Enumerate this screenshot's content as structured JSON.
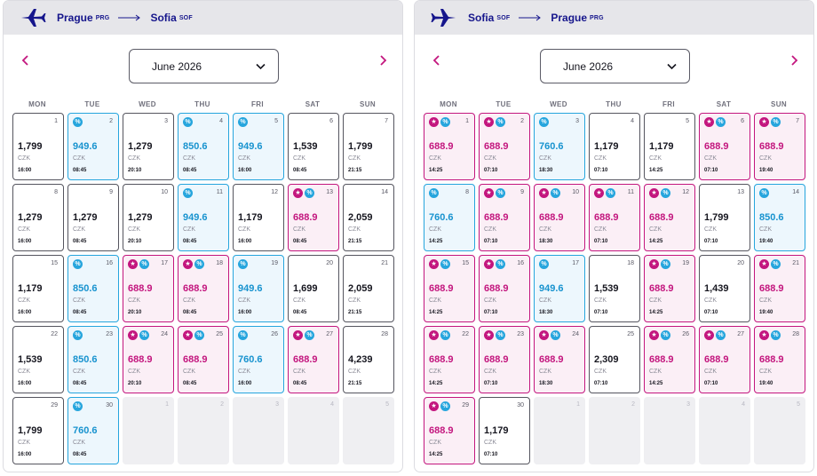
{
  "panels": [
    {
      "from_city": "Prague",
      "from_code": "PRG",
      "to_city": "Sofia",
      "to_code": "SOF",
      "month_label": "June 2026",
      "weekdays": [
        "MON",
        "TUE",
        "WED",
        "THU",
        "FRI",
        "SAT",
        "SUN"
      ],
      "days": [
        {
          "day": "1",
          "price": "1,799",
          "currency": "CZK",
          "time": "16:00",
          "style": "plain"
        },
        {
          "day": "2",
          "price": "949.6",
          "currency": "CZK",
          "time": "08:45",
          "style": "blue",
          "badges": [
            "disc"
          ]
        },
        {
          "day": "3",
          "price": "1,279",
          "currency": "CZK",
          "time": "20:10",
          "style": "plain"
        },
        {
          "day": "4",
          "price": "850.6",
          "currency": "CZK",
          "time": "08:45",
          "style": "blue",
          "badges": [
            "disc"
          ]
        },
        {
          "day": "5",
          "price": "949.6",
          "currency": "CZK",
          "time": "16:00",
          "style": "blue",
          "badges": [
            "disc"
          ]
        },
        {
          "day": "6",
          "price": "1,539",
          "currency": "CZK",
          "time": "08:45",
          "style": "plain"
        },
        {
          "day": "7",
          "price": "1,799",
          "currency": "CZK",
          "time": "21:15",
          "style": "plain"
        },
        {
          "day": "8",
          "price": "1,279",
          "currency": "CZK",
          "time": "16:00",
          "style": "plain"
        },
        {
          "day": "9",
          "price": "1,279",
          "currency": "CZK",
          "time": "08:45",
          "style": "plain"
        },
        {
          "day": "10",
          "price": "1,279",
          "currency": "CZK",
          "time": "20:10",
          "style": "plain"
        },
        {
          "day": "11",
          "price": "949.6",
          "currency": "CZK",
          "time": "08:45",
          "style": "blue",
          "badges": [
            "disc"
          ]
        },
        {
          "day": "12",
          "price": "1,179",
          "currency": "CZK",
          "time": "16:00",
          "style": "plain"
        },
        {
          "day": "13",
          "price": "688.9",
          "currency": "CZK",
          "time": "08:45",
          "style": "pink",
          "badges": [
            "star",
            "disc"
          ]
        },
        {
          "day": "14",
          "price": "2,059",
          "currency": "CZK",
          "time": "21:15",
          "style": "plain"
        },
        {
          "day": "15",
          "price": "1,179",
          "currency": "CZK",
          "time": "16:00",
          "style": "plain"
        },
        {
          "day": "16",
          "price": "850.6",
          "currency": "CZK",
          "time": "08:45",
          "style": "blue",
          "badges": [
            "disc"
          ]
        },
        {
          "day": "17",
          "price": "688.9",
          "currency": "CZK",
          "time": "20:10",
          "style": "pink",
          "badges": [
            "star",
            "disc"
          ]
        },
        {
          "day": "18",
          "price": "688.9",
          "currency": "CZK",
          "time": "08:45",
          "style": "pink",
          "badges": [
            "star",
            "disc"
          ]
        },
        {
          "day": "19",
          "price": "949.6",
          "currency": "CZK",
          "time": "16:00",
          "style": "blue",
          "badges": [
            "disc"
          ]
        },
        {
          "day": "20",
          "price": "1,699",
          "currency": "CZK",
          "time": "08:45",
          "style": "plain"
        },
        {
          "day": "21",
          "price": "2,059",
          "currency": "CZK",
          "time": "21:15",
          "style": "plain"
        },
        {
          "day": "22",
          "price": "1,539",
          "currency": "CZK",
          "time": "16:00",
          "style": "plain"
        },
        {
          "day": "23",
          "price": "850.6",
          "currency": "CZK",
          "time": "08:45",
          "style": "blue",
          "badges": [
            "disc"
          ]
        },
        {
          "day": "24",
          "price": "688.9",
          "currency": "CZK",
          "time": "20:10",
          "style": "pink",
          "badges": [
            "star",
            "disc"
          ]
        },
        {
          "day": "25",
          "price": "688.9",
          "currency": "CZK",
          "time": "08:45",
          "style": "pink",
          "badges": [
            "star",
            "disc"
          ]
        },
        {
          "day": "26",
          "price": "760.6",
          "currency": "CZK",
          "time": "16:00",
          "style": "blue",
          "badges": [
            "disc"
          ]
        },
        {
          "day": "27",
          "price": "688.9",
          "currency": "CZK",
          "time": "08:45",
          "style": "pink",
          "badges": [
            "star",
            "disc"
          ]
        },
        {
          "day": "28",
          "price": "4,239",
          "currency": "CZK",
          "time": "21:15",
          "style": "plain"
        },
        {
          "day": "29",
          "price": "1,799",
          "currency": "CZK",
          "time": "16:00",
          "style": "plain"
        },
        {
          "day": "30",
          "price": "760.6",
          "currency": "CZK",
          "time": "08:45",
          "style": "blue",
          "badges": [
            "disc"
          ]
        },
        {
          "day": "1",
          "style": "empty"
        },
        {
          "day": "2",
          "style": "empty"
        },
        {
          "day": "3",
          "style": "empty"
        },
        {
          "day": "4",
          "style": "empty"
        },
        {
          "day": "5",
          "style": "empty"
        }
      ]
    },
    {
      "from_city": "Sofia",
      "from_code": "SOF",
      "to_city": "Prague",
      "to_code": "PRG",
      "month_label": "June 2026",
      "weekdays": [
        "MON",
        "TUE",
        "WED",
        "THU",
        "FRI",
        "SAT",
        "SUN"
      ],
      "days": [
        {
          "day": "1",
          "price": "688.9",
          "currency": "CZK",
          "time": "14:25",
          "style": "pink",
          "badges": [
            "star",
            "disc"
          ]
        },
        {
          "day": "2",
          "price": "688.9",
          "currency": "CZK",
          "time": "07:10",
          "style": "pink",
          "badges": [
            "star",
            "disc"
          ]
        },
        {
          "day": "3",
          "price": "760.6",
          "currency": "CZK",
          "time": "18:30",
          "style": "blue",
          "badges": [
            "disc"
          ]
        },
        {
          "day": "4",
          "price": "1,179",
          "currency": "CZK",
          "time": "07:10",
          "style": "plain"
        },
        {
          "day": "5",
          "price": "1,179",
          "currency": "CZK",
          "time": "14:25",
          "style": "plain"
        },
        {
          "day": "6",
          "price": "688.9",
          "currency": "CZK",
          "time": "07:10",
          "style": "pink",
          "badges": [
            "star",
            "disc"
          ]
        },
        {
          "day": "7",
          "price": "688.9",
          "currency": "CZK",
          "time": "19:40",
          "style": "pink",
          "badges": [
            "star",
            "disc"
          ]
        },
        {
          "day": "8",
          "price": "760.6",
          "currency": "CZK",
          "time": "14:25",
          "style": "blue",
          "badges": [
            "disc"
          ]
        },
        {
          "day": "9",
          "price": "688.9",
          "currency": "CZK",
          "time": "07:10",
          "style": "pink",
          "badges": [
            "star",
            "disc"
          ]
        },
        {
          "day": "10",
          "price": "688.9",
          "currency": "CZK",
          "time": "18:30",
          "style": "pink",
          "badges": [
            "star",
            "disc"
          ]
        },
        {
          "day": "11",
          "price": "688.9",
          "currency": "CZK",
          "time": "07:10",
          "style": "pink",
          "badges": [
            "star",
            "disc"
          ]
        },
        {
          "day": "12",
          "price": "688.9",
          "currency": "CZK",
          "time": "14:25",
          "style": "pink",
          "badges": [
            "star",
            "disc"
          ]
        },
        {
          "day": "13",
          "price": "1,799",
          "currency": "CZK",
          "time": "07:10",
          "style": "plain"
        },
        {
          "day": "14",
          "price": "850.6",
          "currency": "CZK",
          "time": "19:40",
          "style": "blue",
          "badges": [
            "disc"
          ]
        },
        {
          "day": "15",
          "price": "688.9",
          "currency": "CZK",
          "time": "14:25",
          "style": "pink",
          "badges": [
            "star",
            "disc"
          ]
        },
        {
          "day": "16",
          "price": "688.9",
          "currency": "CZK",
          "time": "07:10",
          "style": "pink",
          "badges": [
            "star",
            "disc"
          ]
        },
        {
          "day": "17",
          "price": "949.6",
          "currency": "CZK",
          "time": "18:30",
          "style": "blue",
          "badges": [
            "disc"
          ]
        },
        {
          "day": "18",
          "price": "1,539",
          "currency": "CZK",
          "time": "07:10",
          "style": "plain"
        },
        {
          "day": "19",
          "price": "688.9",
          "currency": "CZK",
          "time": "14:25",
          "style": "pink",
          "badges": [
            "star",
            "disc"
          ]
        },
        {
          "day": "20",
          "price": "1,439",
          "currency": "CZK",
          "time": "07:10",
          "style": "plain"
        },
        {
          "day": "21",
          "price": "688.9",
          "currency": "CZK",
          "time": "19:40",
          "style": "pink",
          "badges": [
            "star",
            "disc"
          ]
        },
        {
          "day": "22",
          "price": "688.9",
          "currency": "CZK",
          "time": "14:25",
          "style": "pink",
          "badges": [
            "star",
            "disc"
          ]
        },
        {
          "day": "23",
          "price": "688.9",
          "currency": "CZK",
          "time": "07:10",
          "style": "pink",
          "badges": [
            "star",
            "disc"
          ]
        },
        {
          "day": "24",
          "price": "688.9",
          "currency": "CZK",
          "time": "18:30",
          "style": "pink",
          "badges": [
            "star",
            "disc"
          ]
        },
        {
          "day": "25",
          "price": "2,309",
          "currency": "CZK",
          "time": "07:10",
          "style": "plain"
        },
        {
          "day": "26",
          "price": "688.9",
          "currency": "CZK",
          "time": "14:25",
          "style": "pink",
          "badges": [
            "star",
            "disc"
          ]
        },
        {
          "day": "27",
          "price": "688.9",
          "currency": "CZK",
          "time": "07:10",
          "style": "pink",
          "badges": [
            "star",
            "disc"
          ]
        },
        {
          "day": "28",
          "price": "688.9",
          "currency": "CZK",
          "time": "19:40",
          "style": "pink",
          "badges": [
            "star",
            "disc"
          ]
        },
        {
          "day": "29",
          "price": "688.9",
          "currency": "CZK",
          "time": "14:25",
          "style": "pink",
          "badges": [
            "star",
            "disc"
          ]
        },
        {
          "day": "30",
          "price": "1,179",
          "currency": "CZK",
          "time": "07:10",
          "style": "plain"
        },
        {
          "day": "1",
          "style": "empty"
        },
        {
          "day": "2",
          "style": "empty"
        },
        {
          "day": "3",
          "style": "empty"
        },
        {
          "day": "4",
          "style": "empty"
        },
        {
          "day": "5",
          "style": "empty"
        }
      ]
    }
  ],
  "icons": {
    "plane": "plane-icon",
    "route_arrow": "arrow-right-icon",
    "prev": "chevron-left-icon",
    "next": "chevron-right-icon",
    "dropdown": "chevron-down-icon",
    "star_badge": "star-badge-icon",
    "discount_badge": "discount-badge-icon"
  },
  "colors": {
    "brand_navy": "#16168c",
    "accent_pink": "#c3167e",
    "discount_blue": "#26a5dd",
    "header_bg": "#e6e6ea"
  }
}
